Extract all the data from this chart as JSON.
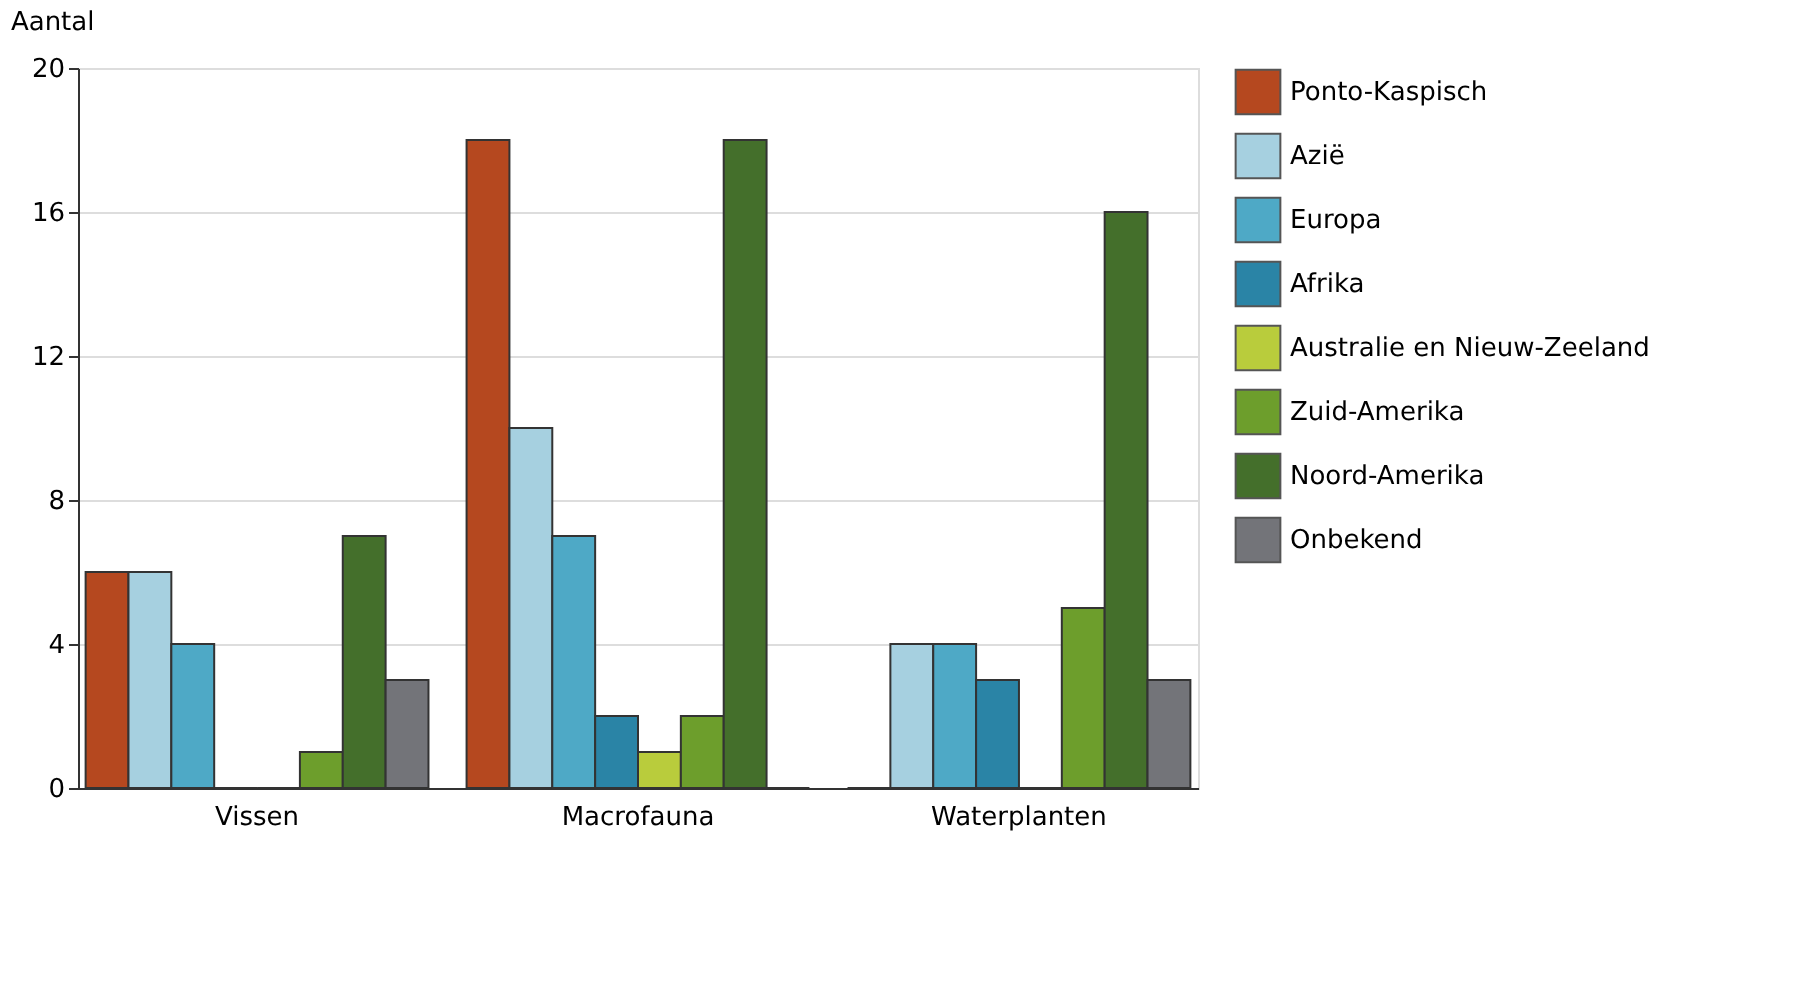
{
  "chart_data": {
    "type": "bar",
    "ylabel": "Aantal",
    "categories": [
      "Vissen",
      "Macrofauna",
      "Waterplanten"
    ],
    "series": [
      {
        "name": "Ponto-Kaspisch",
        "color": "#b5481f",
        "values": [
          6,
          18,
          0
        ]
      },
      {
        "name": "Azië",
        "color": "#a6d0e0",
        "values": [
          6,
          10,
          4
        ]
      },
      {
        "name": "Europa",
        "color": "#4ea9c6",
        "values": [
          4,
          7,
          4
        ]
      },
      {
        "name": "Afrika",
        "color": "#2a84a6",
        "values": [
          0,
          2,
          3
        ]
      },
      {
        "name": "Australie en Nieuw-Zeeland",
        "color": "#b9cc3c",
        "values": [
          0,
          1,
          0
        ]
      },
      {
        "name": "Zuid-Amerika",
        "color": "#6d9e2c",
        "values": [
          1,
          2,
          5
        ]
      },
      {
        "name": "Noord-Amerika",
        "color": "#446f2b",
        "values": [
          7,
          18,
          16
        ]
      },
      {
        "name": "Onbekend",
        "color": "#737479",
        "values": [
          3,
          0,
          3
        ]
      }
    ],
    "ylim": [
      0,
      20
    ],
    "yticks": [
      0,
      4,
      8,
      12,
      16,
      20
    ],
    "grid": "y",
    "legend": "right"
  }
}
